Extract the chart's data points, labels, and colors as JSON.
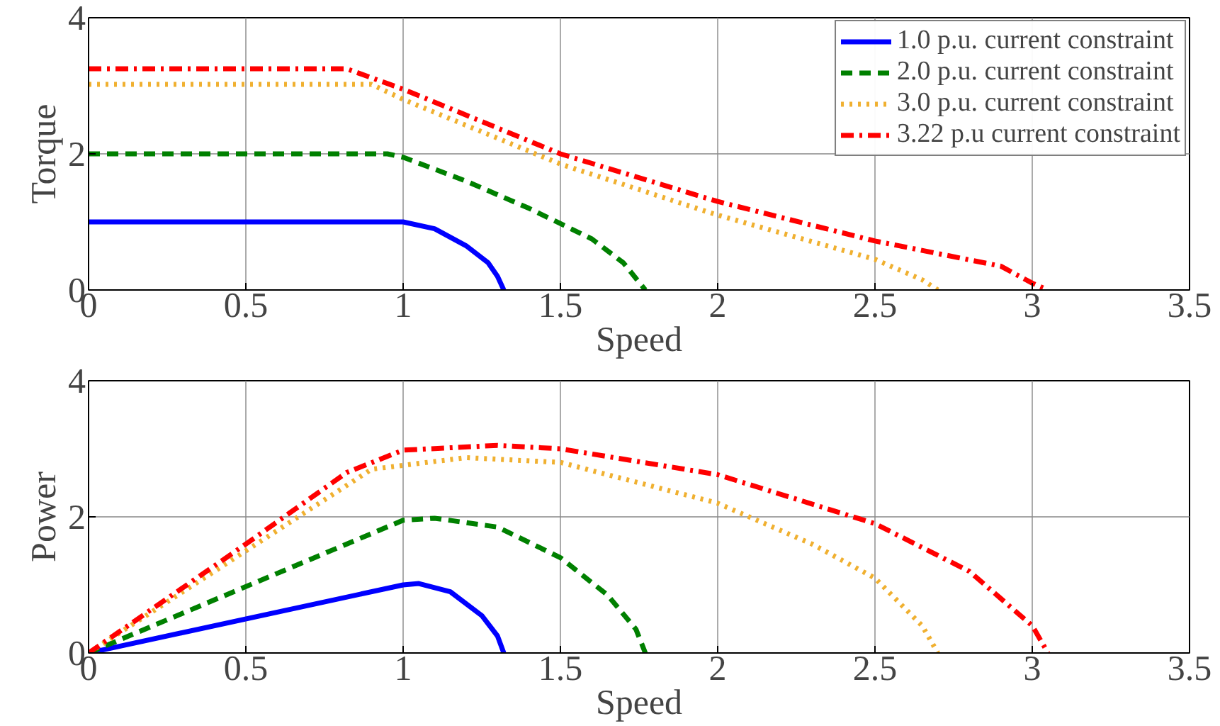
{
  "chart_data": [
    {
      "type": "line",
      "xlabel": "Speed",
      "ylabel": "Torque",
      "xlim": [
        0,
        3.5
      ],
      "ylim": [
        0,
        4
      ],
      "xticks": [
        0,
        0.5,
        1,
        1.5,
        2,
        2.5,
        3,
        3.5
      ],
      "yticks": [
        0,
        2,
        4
      ],
      "grid": true,
      "legend": "top right",
      "series": [
        {
          "name": "1.0 p.u. current constraint",
          "color": "#0000ff",
          "line_style": "solid",
          "x": [
            0,
            1.0,
            1.1,
            1.2,
            1.27,
            1.3,
            1.32
          ],
          "values": [
            1,
            1,
            0.9,
            0.65,
            0.4,
            0.2,
            0
          ]
        },
        {
          "name": "2.0 p.u. current constraint",
          "color": "#008000",
          "line_style": "dashed",
          "x": [
            0,
            0.95,
            1.0,
            1.2,
            1.4,
            1.6,
            1.7,
            1.77
          ],
          "values": [
            2,
            2,
            1.95,
            1.6,
            1.2,
            0.75,
            0.4,
            0
          ]
        },
        {
          "name": "3.0 p.u. current constraint",
          "color": "#f0b030",
          "line_style": "dotted",
          "x": [
            0,
            0.9,
            1.0,
            1.5,
            2.0,
            2.5,
            2.65,
            2.7
          ],
          "values": [
            3.02,
            3.02,
            2.8,
            1.85,
            1.1,
            0.45,
            0.15,
            0
          ]
        },
        {
          "name": "3.22 p.u current constraint",
          "color": "#ff0000",
          "line_style": "dashdot",
          "x": [
            0,
            0.82,
            1.0,
            1.5,
            2.0,
            2.5,
            2.9,
            3.0,
            3.05
          ],
          "values": [
            3.25,
            3.25,
            2.95,
            2.0,
            1.3,
            0.72,
            0.35,
            0.1,
            0
          ]
        }
      ]
    },
    {
      "type": "line",
      "xlabel": "Speed",
      "ylabel": "Power",
      "xlim": [
        0,
        3.5
      ],
      "ylim": [
        0,
        4
      ],
      "xticks": [
        0,
        0.5,
        1,
        1.5,
        2,
        2.5,
        3,
        3.5
      ],
      "yticks": [
        0,
        2,
        4
      ],
      "grid": true,
      "series": [
        {
          "color": "#0000ff",
          "line_style": "solid",
          "x": [
            0,
            1.0,
            1.05,
            1.15,
            1.25,
            1.3,
            1.32
          ],
          "values": [
            0,
            1.0,
            1.02,
            0.9,
            0.55,
            0.25,
            0
          ]
        },
        {
          "color": "#008000",
          "line_style": "dashed",
          "x": [
            0,
            1.0,
            1.1,
            1.3,
            1.5,
            1.65,
            1.74,
            1.77
          ],
          "values": [
            0,
            1.95,
            1.98,
            1.85,
            1.4,
            0.85,
            0.35,
            0
          ]
        },
        {
          "color": "#f0b030",
          "line_style": "dotted",
          "x": [
            0,
            0.5,
            0.9,
            1.2,
            1.5,
            2.0,
            2.3,
            2.5,
            2.65,
            2.7
          ],
          "values": [
            0,
            1.5,
            2.7,
            2.87,
            2.8,
            2.2,
            1.6,
            1.1,
            0.4,
            0
          ]
        },
        {
          "color": "#ff0000",
          "line_style": "dashdot",
          "x": [
            0,
            0.5,
            0.82,
            1.0,
            1.3,
            1.5,
            2.0,
            2.5,
            2.8,
            3.0,
            3.05
          ],
          "values": [
            0,
            1.6,
            2.65,
            2.98,
            3.05,
            3.0,
            2.62,
            1.9,
            1.2,
            0.4,
            0
          ]
        }
      ]
    }
  ]
}
